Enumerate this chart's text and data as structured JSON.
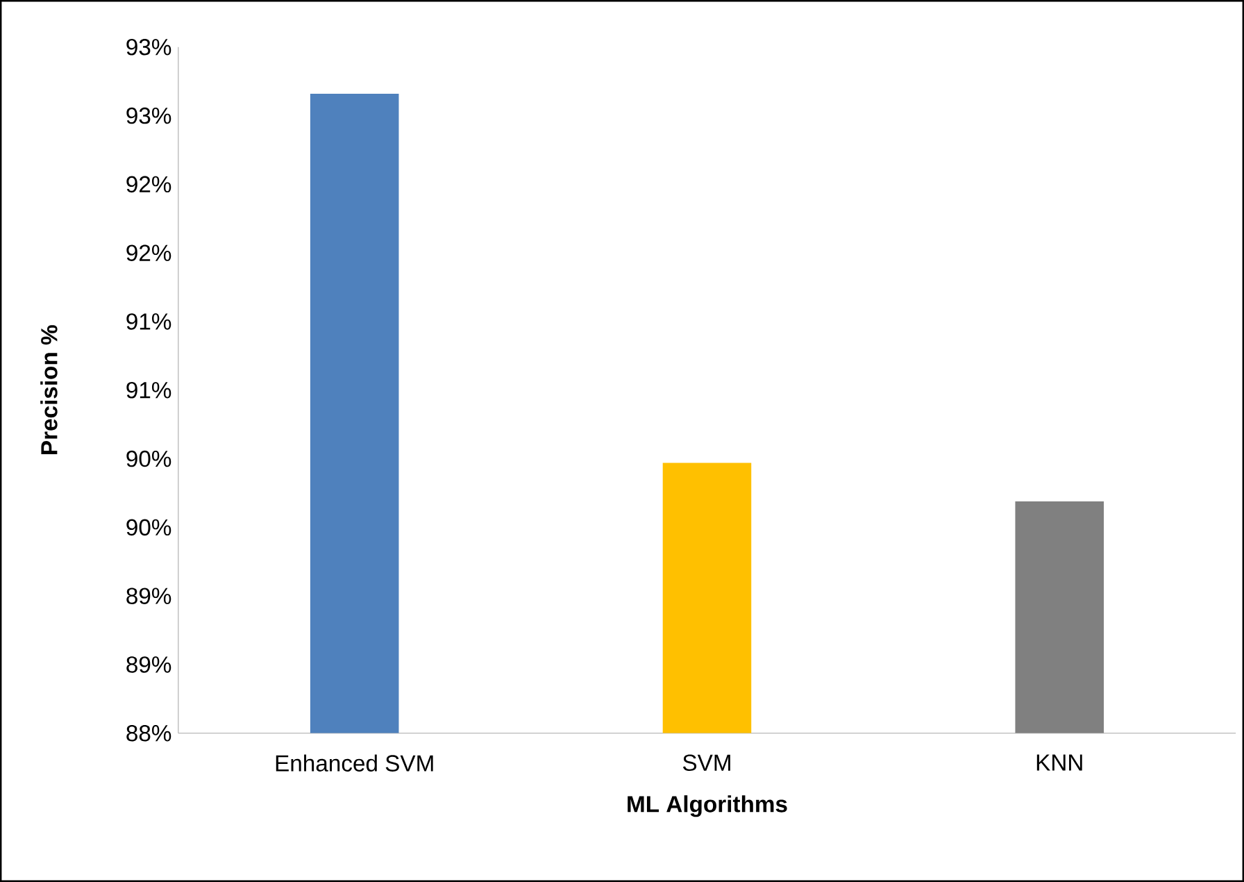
{
  "chart_data": {
    "type": "bar",
    "xlabel": "ML Algorithms",
    "ylabel": "Precision %",
    "categories": [
      "Enhanced SVM",
      "SVM",
      "KNN"
    ],
    "values": [
      92.66,
      89.97,
      89.69
    ],
    "colors": [
      "#4f81bd",
      "#ffc000",
      "#808080"
    ],
    "ylim": [
      88,
      93
    ],
    "yticks": [
      {
        "value": 88,
        "label": "88%"
      },
      {
        "value": 88.5,
        "label": "89%"
      },
      {
        "value": 89,
        "label": "89%"
      },
      {
        "value": 89.5,
        "label": "90%"
      },
      {
        "value": 90,
        "label": "90%"
      },
      {
        "value": 90.5,
        "label": "91%"
      },
      {
        "value": 91,
        "label": "91%"
      },
      {
        "value": 91.5,
        "label": "92%"
      },
      {
        "value": 92,
        "label": "92%"
      },
      {
        "value": 92.5,
        "label": "93%"
      },
      {
        "value": 93,
        "label": "93%"
      }
    ],
    "grid": false
  }
}
